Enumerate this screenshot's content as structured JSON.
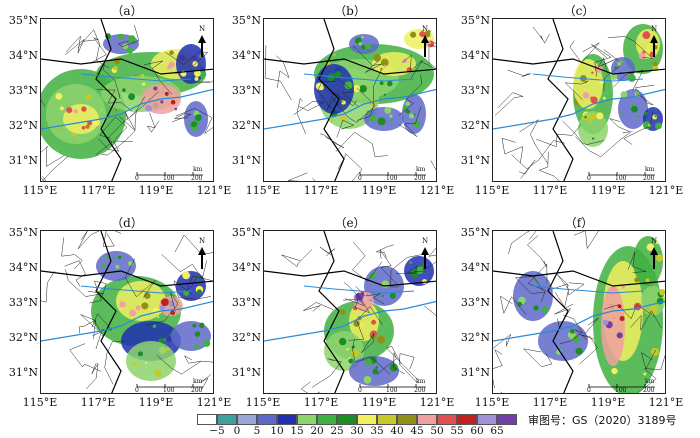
{
  "panels": [
    {
      "label": "（a）",
      "col": 0,
      "row": 0
    },
    {
      "label": "（b）",
      "col": 1,
      "row": 0
    },
    {
      "label": "（c）",
      "col": 2,
      "row": 0
    },
    {
      "label": "（d）",
      "col": 0,
      "row": 1
    },
    {
      "label": "（e）",
      "col": 1,
      "row": 1
    },
    {
      "label": "（f）",
      "col": 2,
      "row": 1
    }
  ],
  "lat_labels": [
    "35°N",
    "34°N",
    "33°N",
    "32°N",
    "31°N"
  ],
  "lon_labels": [
    "115°E",
    "117°E",
    "119°E",
    "121°E"
  ],
  "north_label": "N",
  "scale": {
    "ticks": [
      "0",
      "100",
      "200"
    ],
    "unit": "km"
  },
  "legend": {
    "values": [
      "−5",
      "0",
      "5",
      "10",
      "15",
      "20",
      "25",
      "30",
      "35",
      "40",
      "45",
      "50",
      "55",
      "60",
      "65"
    ],
    "colors": [
      "#ffffff",
      "#3fa0a0",
      "#9aa6d8",
      "#5e68c8",
      "#2030b0",
      "#8cd46c",
      "#40b040",
      "#1c8c24",
      "#f0f060",
      "#c8c828",
      "#909018",
      "#f0a0a0",
      "#e05050",
      "#c02020",
      "#a090d8",
      "#7040a8"
    ]
  },
  "approval": "审图号：GS（2020）3189号",
  "colors": {
    "river": "#2a8ad8",
    "border": "#222222",
    "province": "#000000"
  }
}
